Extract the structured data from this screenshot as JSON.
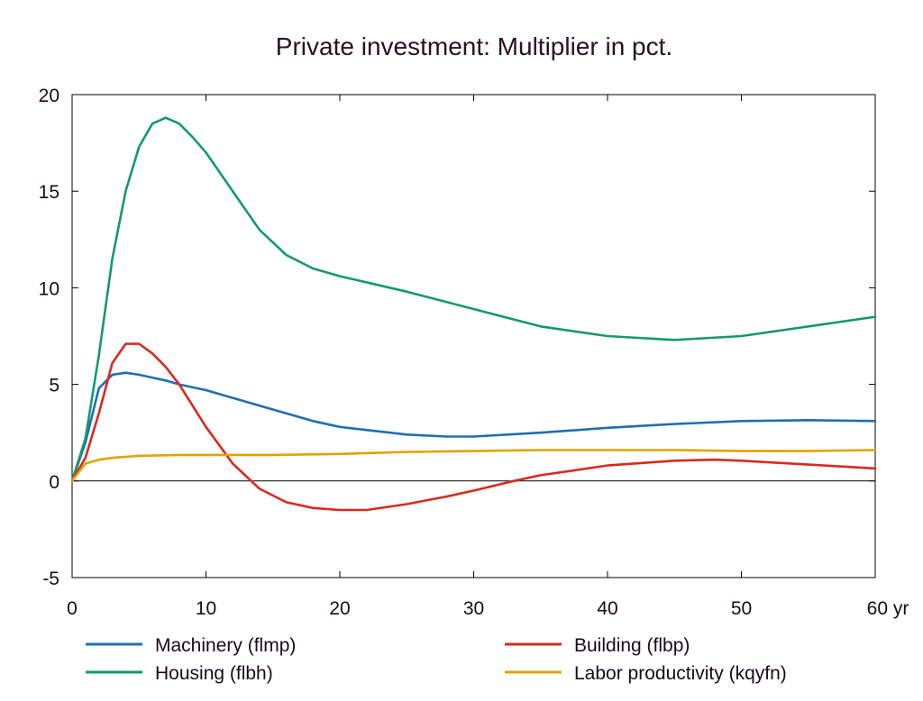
{
  "chart_data": {
    "type": "line",
    "title": "Private investment: Multiplier in pct.",
    "xlabel": "",
    "ylabel": "",
    "xlim": [
      0,
      60
    ],
    "ylim": [
      -5,
      20
    ],
    "x_ticks": [
      0,
      10,
      20,
      30,
      40,
      50,
      60
    ],
    "x_tick_labels": [
      "0",
      "10",
      "20",
      "30",
      "40",
      "50",
      "60 yr"
    ],
    "y_ticks": [
      -5,
      0,
      5,
      10,
      15,
      20
    ],
    "y_tick_labels": [
      "-5",
      "0",
      "5",
      "10",
      "15",
      "20"
    ],
    "grid": false,
    "legend_position": "bottom",
    "zero_line": true,
    "series": [
      {
        "name": "Machinery (flmp)",
        "color": "#1f6fb2",
        "points": [
          [
            0,
            0
          ],
          [
            1,
            2.0
          ],
          [
            2,
            4.8
          ],
          [
            3,
            5.5
          ],
          [
            4,
            5.6
          ],
          [
            5,
            5.5
          ],
          [
            6,
            5.35
          ],
          [
            7,
            5.2
          ],
          [
            8,
            5.0
          ],
          [
            10,
            4.7
          ],
          [
            12,
            4.3
          ],
          [
            15,
            3.7
          ],
          [
            18,
            3.1
          ],
          [
            20,
            2.8
          ],
          [
            25,
            2.4
          ],
          [
            28,
            2.3
          ],
          [
            30,
            2.3
          ],
          [
            35,
            2.5
          ],
          [
            40,
            2.75
          ],
          [
            45,
            2.95
          ],
          [
            50,
            3.1
          ],
          [
            55,
            3.15
          ],
          [
            60,
            3.1
          ]
        ]
      },
      {
        "name": "Housing (flbh)",
        "color": "#14996f",
        "points": [
          [
            0,
            0
          ],
          [
            1,
            2.2
          ],
          [
            2,
            6.5
          ],
          [
            3,
            11.5
          ],
          [
            4,
            15.0
          ],
          [
            5,
            17.3
          ],
          [
            6,
            18.5
          ],
          [
            7,
            18.8
          ],
          [
            8,
            18.5
          ],
          [
            9,
            17.8
          ],
          [
            10,
            17.0
          ],
          [
            12,
            15.0
          ],
          [
            14,
            13.0
          ],
          [
            16,
            11.7
          ],
          [
            18,
            11.0
          ],
          [
            20,
            10.6
          ],
          [
            25,
            9.8
          ],
          [
            30,
            8.9
          ],
          [
            35,
            8.0
          ],
          [
            40,
            7.5
          ],
          [
            45,
            7.3
          ],
          [
            50,
            7.5
          ],
          [
            55,
            8.0
          ],
          [
            60,
            8.5
          ]
        ]
      },
      {
        "name": "Building (flbp)",
        "color": "#d92a1f",
        "points": [
          [
            0,
            0
          ],
          [
            1,
            1.2
          ],
          [
            2,
            3.5
          ],
          [
            3,
            6.1
          ],
          [
            4,
            7.1
          ],
          [
            5,
            7.1
          ],
          [
            6,
            6.6
          ],
          [
            7,
            5.9
          ],
          [
            8,
            5.0
          ],
          [
            10,
            2.8
          ],
          [
            12,
            0.9
          ],
          [
            14,
            -0.4
          ],
          [
            16,
            -1.1
          ],
          [
            18,
            -1.4
          ],
          [
            20,
            -1.5
          ],
          [
            22,
            -1.5
          ],
          [
            25,
            -1.2
          ],
          [
            28,
            -0.8
          ],
          [
            30,
            -0.5
          ],
          [
            33,
            0.0
          ],
          [
            35,
            0.3
          ],
          [
            40,
            0.8
          ],
          [
            45,
            1.05
          ],
          [
            48,
            1.1
          ],
          [
            50,
            1.05
          ],
          [
            55,
            0.85
          ],
          [
            60,
            0.65
          ]
        ]
      },
      {
        "name": "Labor productivity (kqyfn)",
        "color": "#e0a400",
        "points": [
          [
            0,
            0
          ],
          [
            1,
            0.9
          ],
          [
            2,
            1.1
          ],
          [
            3,
            1.2
          ],
          [
            5,
            1.3
          ],
          [
            8,
            1.35
          ],
          [
            10,
            1.35
          ],
          [
            15,
            1.35
          ],
          [
            20,
            1.4
          ],
          [
            25,
            1.5
          ],
          [
            30,
            1.55
          ],
          [
            35,
            1.6
          ],
          [
            40,
            1.6
          ],
          [
            45,
            1.6
          ],
          [
            50,
            1.55
          ],
          [
            55,
            1.55
          ],
          [
            60,
            1.6
          ]
        ]
      }
    ]
  }
}
